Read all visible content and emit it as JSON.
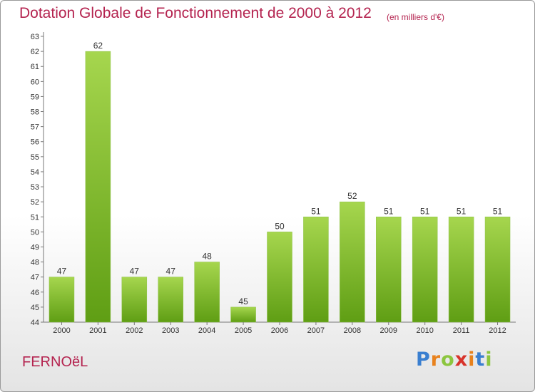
{
  "header": {
    "title": "Dotation Globale de Fonctionnement de 2000 à 2012",
    "subtitle": "(en milliers d'€)"
  },
  "footer": {
    "commune": "FERNOëL",
    "brand_letters": [
      "P",
      "r",
      "o",
      "x",
      "i",
      "t",
      "i"
    ],
    "brand_colors": [
      "#3a7fd0",
      "#e8821e",
      "#8cc63f",
      "#d8332b",
      "#e8821e",
      "#3a7fd0",
      "#8cc63f"
    ]
  },
  "colors": {
    "bar_light": "#a6d64e",
    "bar_dark": "#5f9e14",
    "axis": "#777777",
    "grid": "#cccccc",
    "text": "#333333"
  },
  "chart_data": {
    "type": "bar",
    "categories": [
      "2000",
      "2001",
      "2002",
      "2003",
      "2004",
      "2005",
      "2006",
      "2007",
      "2008",
      "2009",
      "2010",
      "2011",
      "2012"
    ],
    "values": [
      47,
      62,
      47,
      47,
      48,
      45,
      50,
      51,
      52,
      51,
      51,
      51,
      51
    ],
    "title": "Dotation Globale de Fonctionnement de 2000 à 2012",
    "subtitle": "(en milliers d'€)",
    "ylim": [
      44,
      63
    ],
    "y_ticks": [
      44,
      45,
      46,
      47,
      48,
      49,
      50,
      51,
      52,
      53,
      54,
      55,
      56,
      57,
      58,
      59,
      60,
      61,
      62,
      63
    ],
    "data_labels": true,
    "grid": false
  }
}
